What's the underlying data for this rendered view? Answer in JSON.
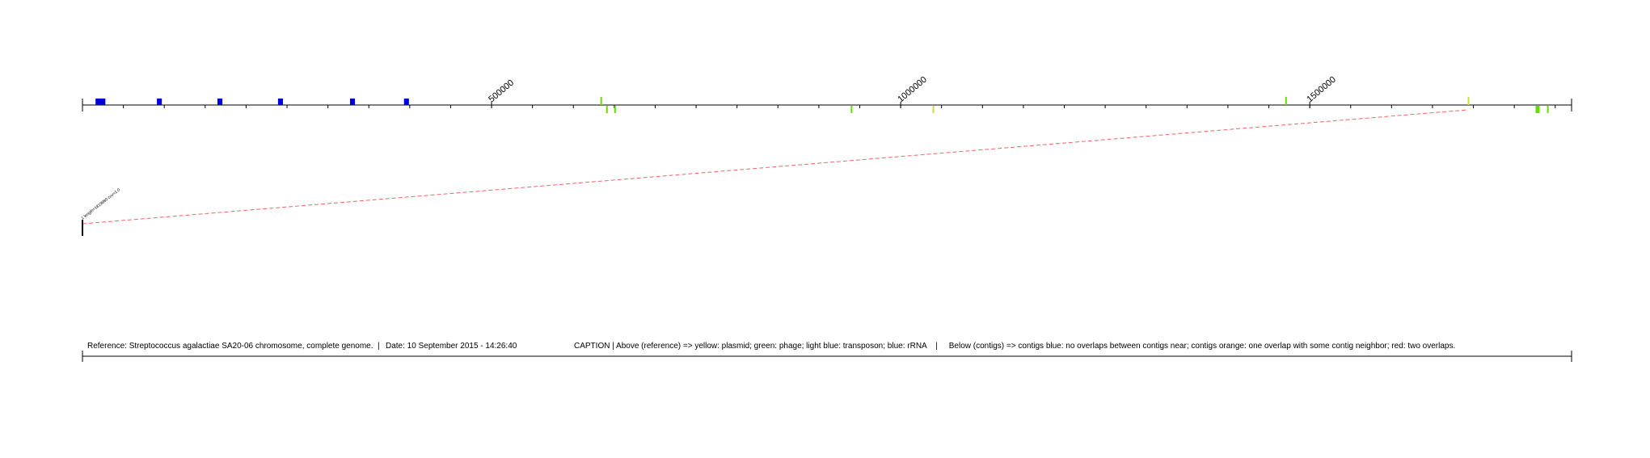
{
  "reference": {
    "text": "Reference: Streptococcus agalactiae SA20-06 chromosome, complete genome.",
    "length": 1820000
  },
  "separator": "|",
  "date": "Date: 10 September 2015 - 14:26:40",
  "caption": "CAPTION | Above (reference) => yellow: plasmid; green: phage; light blue: transposon; blue: rRNA    |     Below (contigs) => contigs blue: no overlaps between contigs near; contigs orange: one overlap with some contig neighbor; red: two overlaps.",
  "colors": {
    "axis": "#000000",
    "rRNA": "#0000dd",
    "phage": "#66dd00",
    "plasmid": "#ccdd44",
    "mapping_line": "#ee6666"
  },
  "axis": {
    "minor_tick_every": 50000,
    "major_ticks": [
      {
        "pos": 500000,
        "label": "500000"
      },
      {
        "pos": 1000000,
        "label": "1000000"
      },
      {
        "pos": 1500000,
        "label": "1500000"
      }
    ]
  },
  "features": [
    {
      "type": "rRNA",
      "start": 16000,
      "end": 28000
    },
    {
      "type": "rRNA",
      "start": 91000,
      "end": 97000
    },
    {
      "type": "rRNA",
      "start": 165000,
      "end": 171000
    },
    {
      "type": "rRNA",
      "start": 239000,
      "end": 245000
    },
    {
      "type": "rRNA",
      "start": 327000,
      "end": 333000
    },
    {
      "type": "rRNA",
      "start": 393000,
      "end": 399000
    },
    {
      "type": "phage",
      "start": 633000,
      "end": 634000,
      "side": "above"
    },
    {
      "type": "phage",
      "start": 640000,
      "end": 642000,
      "side": "below"
    },
    {
      "type": "phage",
      "start": 650000,
      "end": 651000,
      "side": "below"
    },
    {
      "type": "phage",
      "start": 939000,
      "end": 941000,
      "side": "below"
    },
    {
      "type": "plasmid",
      "start": 1039000,
      "end": 1041000,
      "side": "below"
    },
    {
      "type": "phage",
      "start": 1470000,
      "end": 1471000,
      "side": "above"
    },
    {
      "type": "plasmid",
      "start": 1693000,
      "end": 1694000,
      "side": "above"
    },
    {
      "type": "phage",
      "start": 1776000,
      "end": 1781000,
      "side": "below"
    },
    {
      "type": "phage",
      "start": 1790000,
      "end": 1791000,
      "side": "below"
    }
  ],
  "contig": {
    "label": "1 length=1819880 cov=1.0",
    "ref_start": 0,
    "ref_end": 1693000
  }
}
